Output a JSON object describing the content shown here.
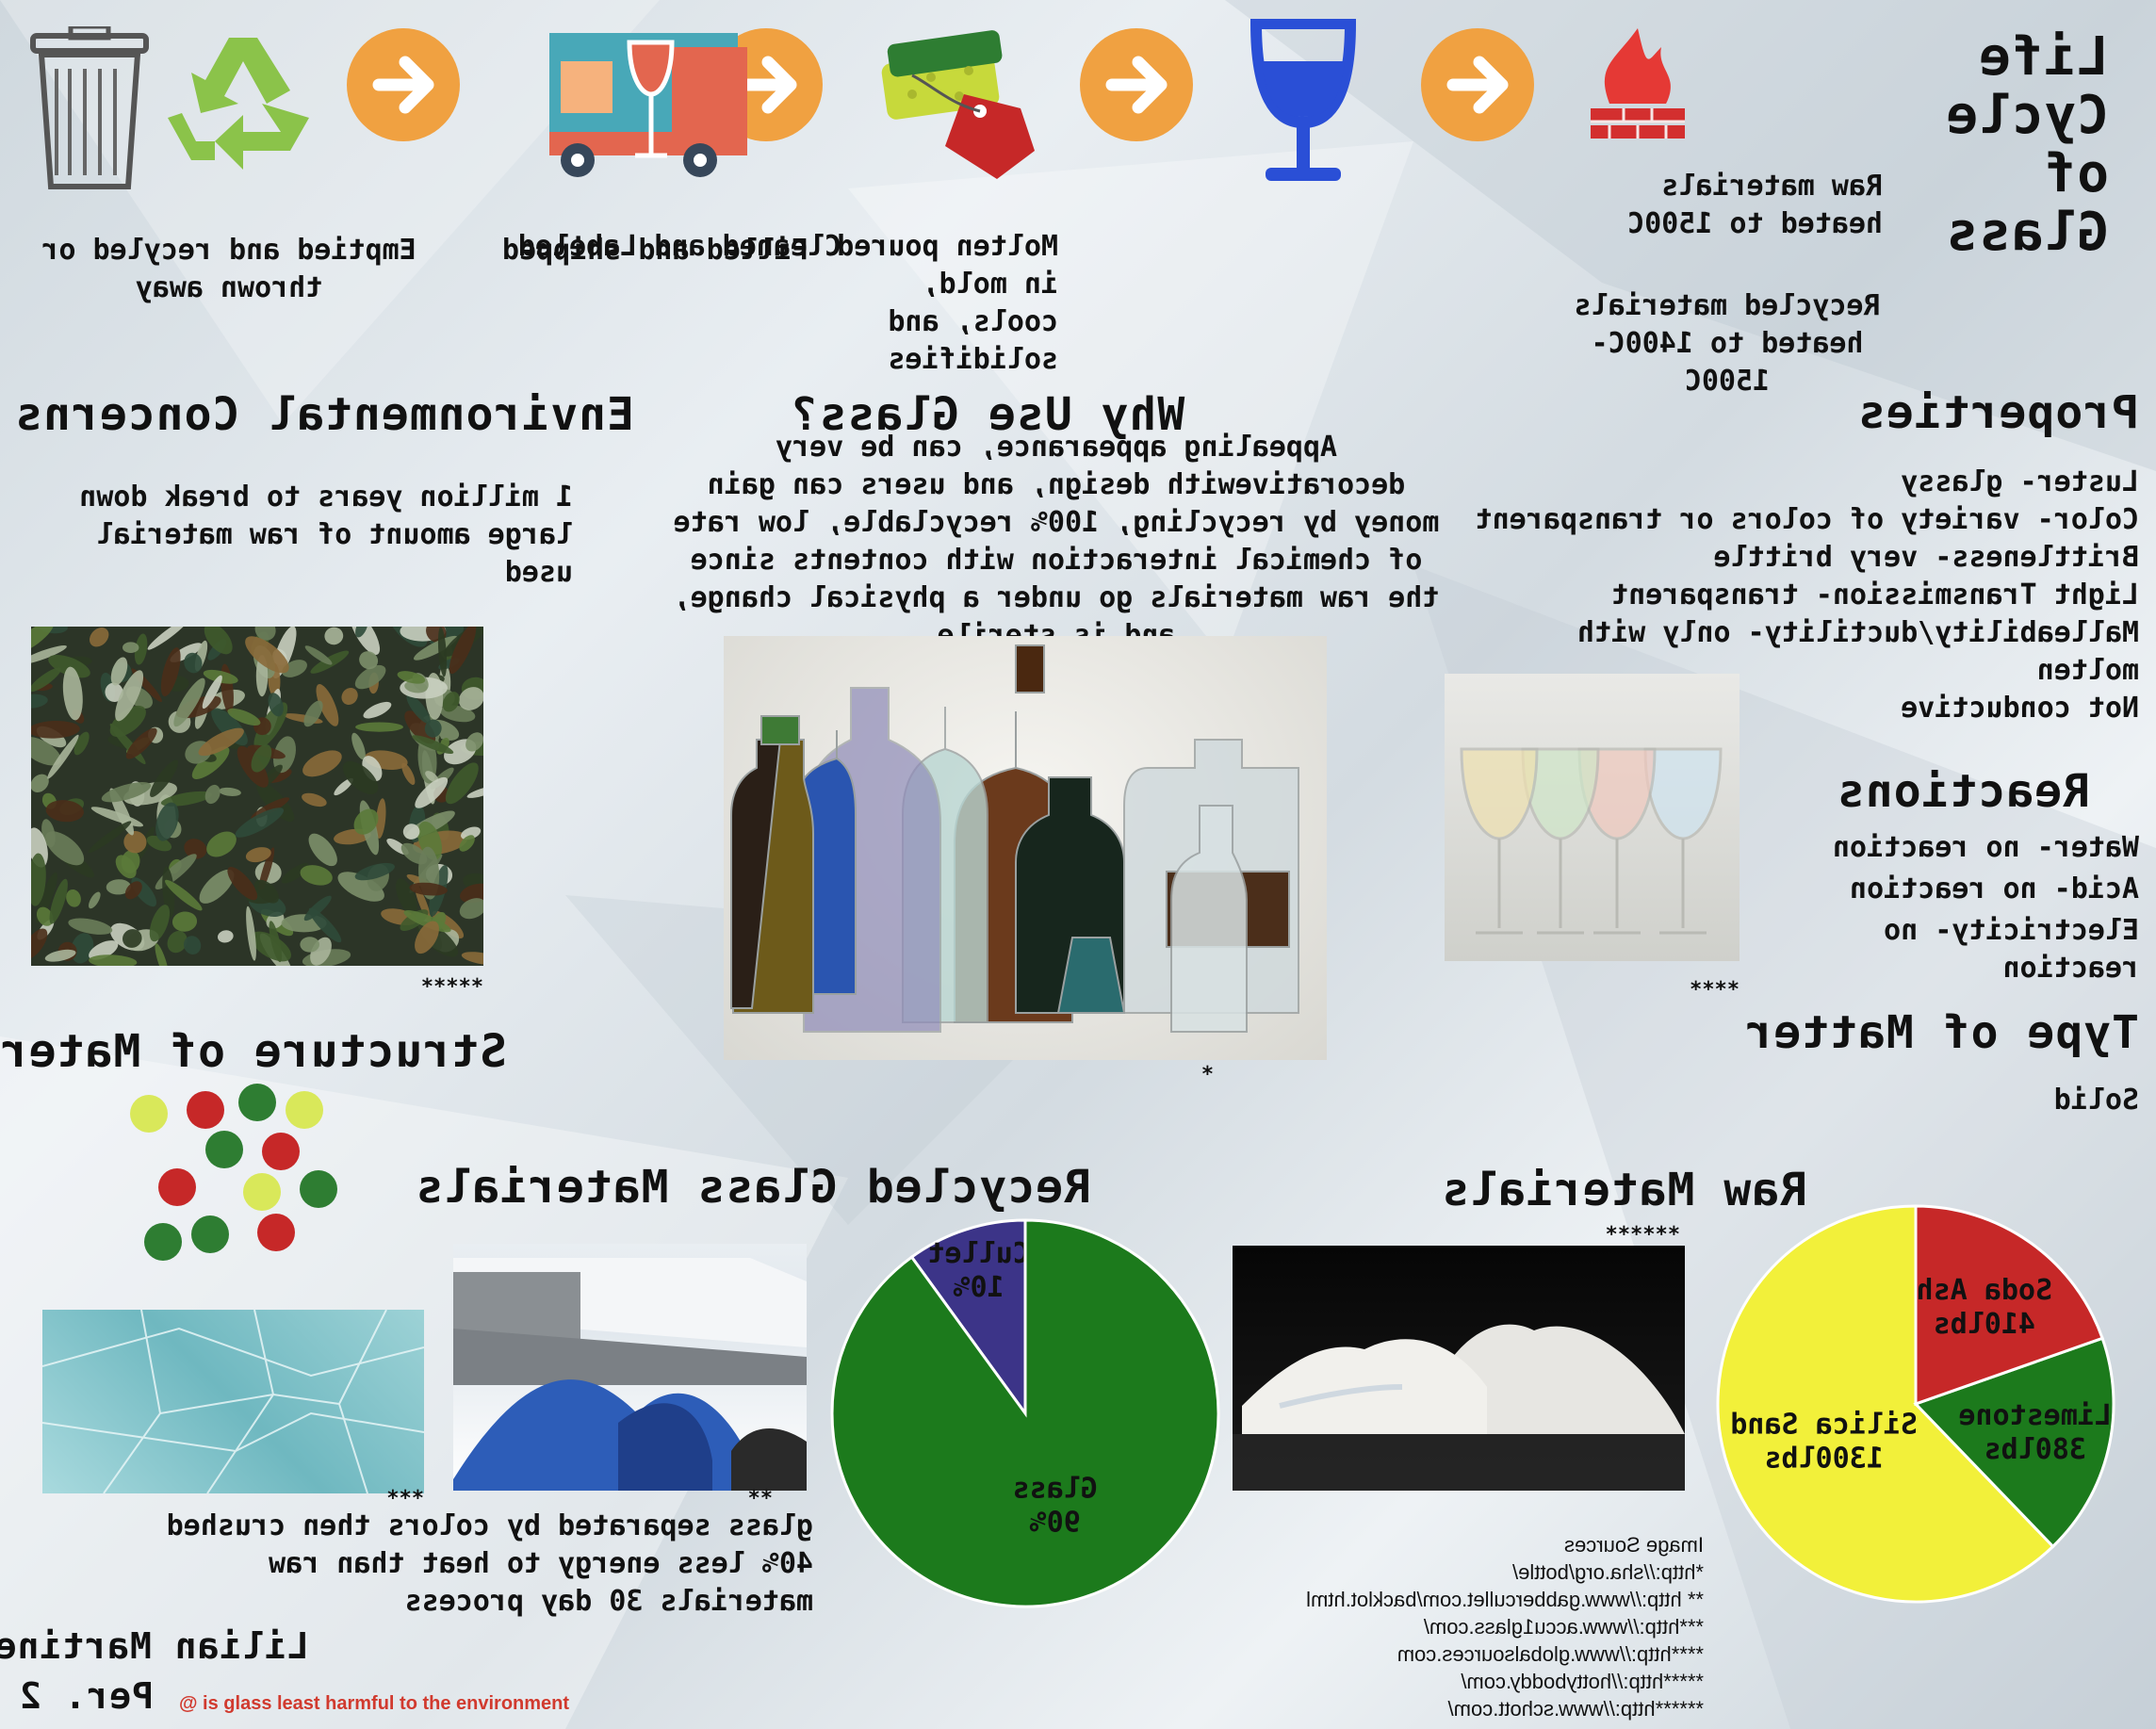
{
  "title": "Life Cycle of Glass",
  "cycle": {
    "steps": [
      {
        "text": "Raw materials heated to 1500C",
        "icon": "fire-icon"
      },
      {
        "text": "Recycled materials heated to 1400C-1500C",
        "icon": ""
      },
      {
        "text": "Molten poured in mold, cools, and solidifies",
        "icon": "wine-glass-icon"
      },
      {
        "text": "Cleaned and Labeled",
        "icon": "sponge-tag-icon"
      },
      {
        "text": "Filled and shipped",
        "icon": "truck-icon"
      },
      {
        "text": "Emptied and recyled or thrown away",
        "icon": "trash-can-icon"
      }
    ],
    "arrow_icon": "arrow-left-icon",
    "recycle_icon": "recycle-icon",
    "accent": "#f0a141"
  },
  "properties": {
    "heading": "Properties",
    "lines": [
      "Luster- glassy",
      "Color- variety of colors or transparent",
      "Brittleness- very brittle",
      "Light Transmission- transparent",
      "Malleability/ductility- only with molten",
      "Not conductive"
    ],
    "photo_note": "****"
  },
  "reactions": {
    "heading": "Reactions",
    "lines": [
      "Water- no reaction",
      "Acid- no reaction",
      "Electricity- no reaction"
    ]
  },
  "matter": {
    "heading": "Type of Matter",
    "value": "Solid"
  },
  "why": {
    "heading": "Why Use Glass?",
    "text": "Appealing appearance, can be very decorativewith design, and users can gain money by recycling, 100% recyclable, low rate of chemical interaction with contents since the raw materials go under a physical change, and is sterile",
    "photo_note": "*"
  },
  "environment": {
    "heading": "Environmental Concerns",
    "text": "1 million years to break down large amount of raw material used",
    "photo_note": "*****"
  },
  "structure": {
    "heading": "Structure of Material",
    "colors": [
      "#d9e85a",
      "#c62828",
      "#2e7d32"
    ]
  },
  "recycled": {
    "heading": "Recycled Glass Materials",
    "text": "glass separated by colors then crushed 40% less energy to heat than raw materials 30 day process",
    "notes": [
      "***",
      "**"
    ]
  },
  "raw": {
    "heading": "Raw Materials",
    "photo_note": "******"
  },
  "chart_data": [
    {
      "type": "pie",
      "title": "Recycled Glass Materials",
      "categories": [
        "Cullet",
        "Glass"
      ],
      "values": [
        10,
        90
      ],
      "labels": [
        "Cullet 10%",
        "Glass 90%"
      ],
      "colors": [
        "#3c3488",
        "#1c7a1c"
      ]
    },
    {
      "type": "pie",
      "title": "Raw Materials",
      "categories": [
        "Silica Sand",
        "Limestone",
        "Soda Ash"
      ],
      "values": [
        1300,
        380,
        410
      ],
      "labels": [
        "Silica Sand 1300lbs",
        "Limestone 380lbs",
        "Soda Ash 410lbs"
      ],
      "colors": [
        "#f2f03a",
        "#1c7a1c",
        "#c62828"
      ]
    }
  ],
  "sources": {
    "heading": "Image Sources",
    "lines": [
      "*http://sha.org/bottle/",
      "** http://www.gabbercullet.com/backlot.html",
      "***http://www.accu1glass.com/",
      "****http://www.globalsources.com",
      "*****http://hottyboddy.com/",
      "******http://www.schott.com/"
    ]
  },
  "author": "Lilian Martinez",
  "period": "Per. 2",
  "watermark": "@ is glass least harmful to the environment"
}
